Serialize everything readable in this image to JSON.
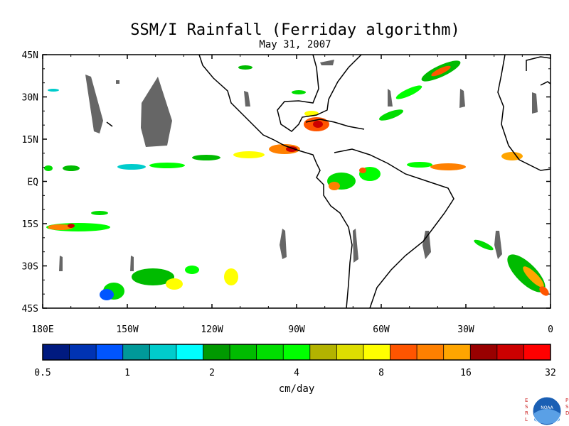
{
  "title": "SSM/I Rainfall (Ferriday algorithm)",
  "date": "May 31, 2007",
  "lat_labels": [
    "45N",
    "30N",
    "15N",
    "EQ",
    "15S",
    "30S",
    "45S"
  ],
  "lon_labels": [
    "180E",
    "150W",
    "120W",
    "90W",
    "60W",
    "30W",
    "0"
  ],
  "colorbar": {
    "colors": [
      "#001a80",
      "#0033b3",
      "#0055ff",
      "#009999",
      "#00cccc",
      "#00ffff",
      "#009900",
      "#00bb00",
      "#00dd00",
      "#00ff00",
      "#b3b300",
      "#dddd00",
      "#ffff00",
      "#ff5500",
      "#ff8000",
      "#ffa500",
      "#990000",
      "#cc0000",
      "#ff0000"
    ],
    "tick_labels": [
      "0.5",
      "1",
      "2",
      "4",
      "8",
      "16",
      "32"
    ],
    "units": "cm/day"
  },
  "logo": {
    "left_letters": "ESRL",
    "right_letters": "PSD",
    "center_text": "NOAA"
  }
}
